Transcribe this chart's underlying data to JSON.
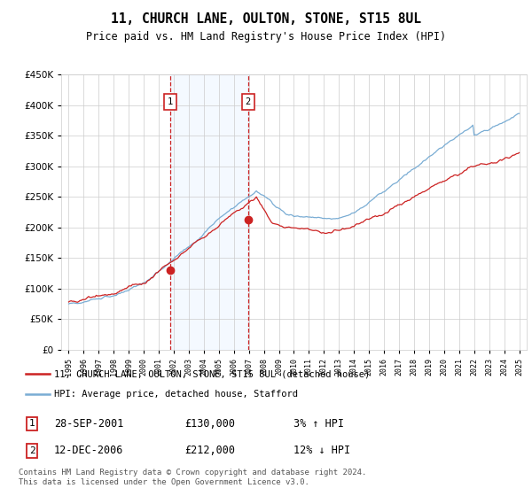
{
  "title": "11, CHURCH LANE, OULTON, STONE, ST15 8UL",
  "subtitle": "Price paid vs. HM Land Registry's House Price Index (HPI)",
  "legend_line1": "11, CHURCH LANE, OULTON, STONE, ST15 8UL (detached house)",
  "legend_line2": "HPI: Average price, detached house, Stafford",
  "transaction1_date": "28-SEP-2001",
  "transaction1_price": "£130,000",
  "transaction1_hpi": "3% ↑ HPI",
  "transaction2_date": "12-DEC-2006",
  "transaction2_price": "£212,000",
  "transaction2_hpi": "12% ↓ HPI",
  "footer": "Contains HM Land Registry data © Crown copyright and database right 2024.\nThis data is licensed under the Open Government Licence v3.0.",
  "hpi_color": "#7aadd4",
  "price_color": "#cc2222",
  "marker_box_color": "#cc2222",
  "shading_color": "#ddeeff",
  "grid_color": "#cccccc",
  "ylim": [
    0,
    450000
  ],
  "yticks": [
    0,
    50000,
    100000,
    150000,
    200000,
    250000,
    300000,
    350000,
    400000,
    450000
  ],
  "transaction1_year": 2001.75,
  "transaction2_year": 2006.95,
  "transaction1_value": 130000,
  "transaction2_value": 212000,
  "xlim_left": 1994.5,
  "xlim_right": 2025.5,
  "fig_width": 6.0,
  "fig_height": 5.6,
  "dpi": 100
}
